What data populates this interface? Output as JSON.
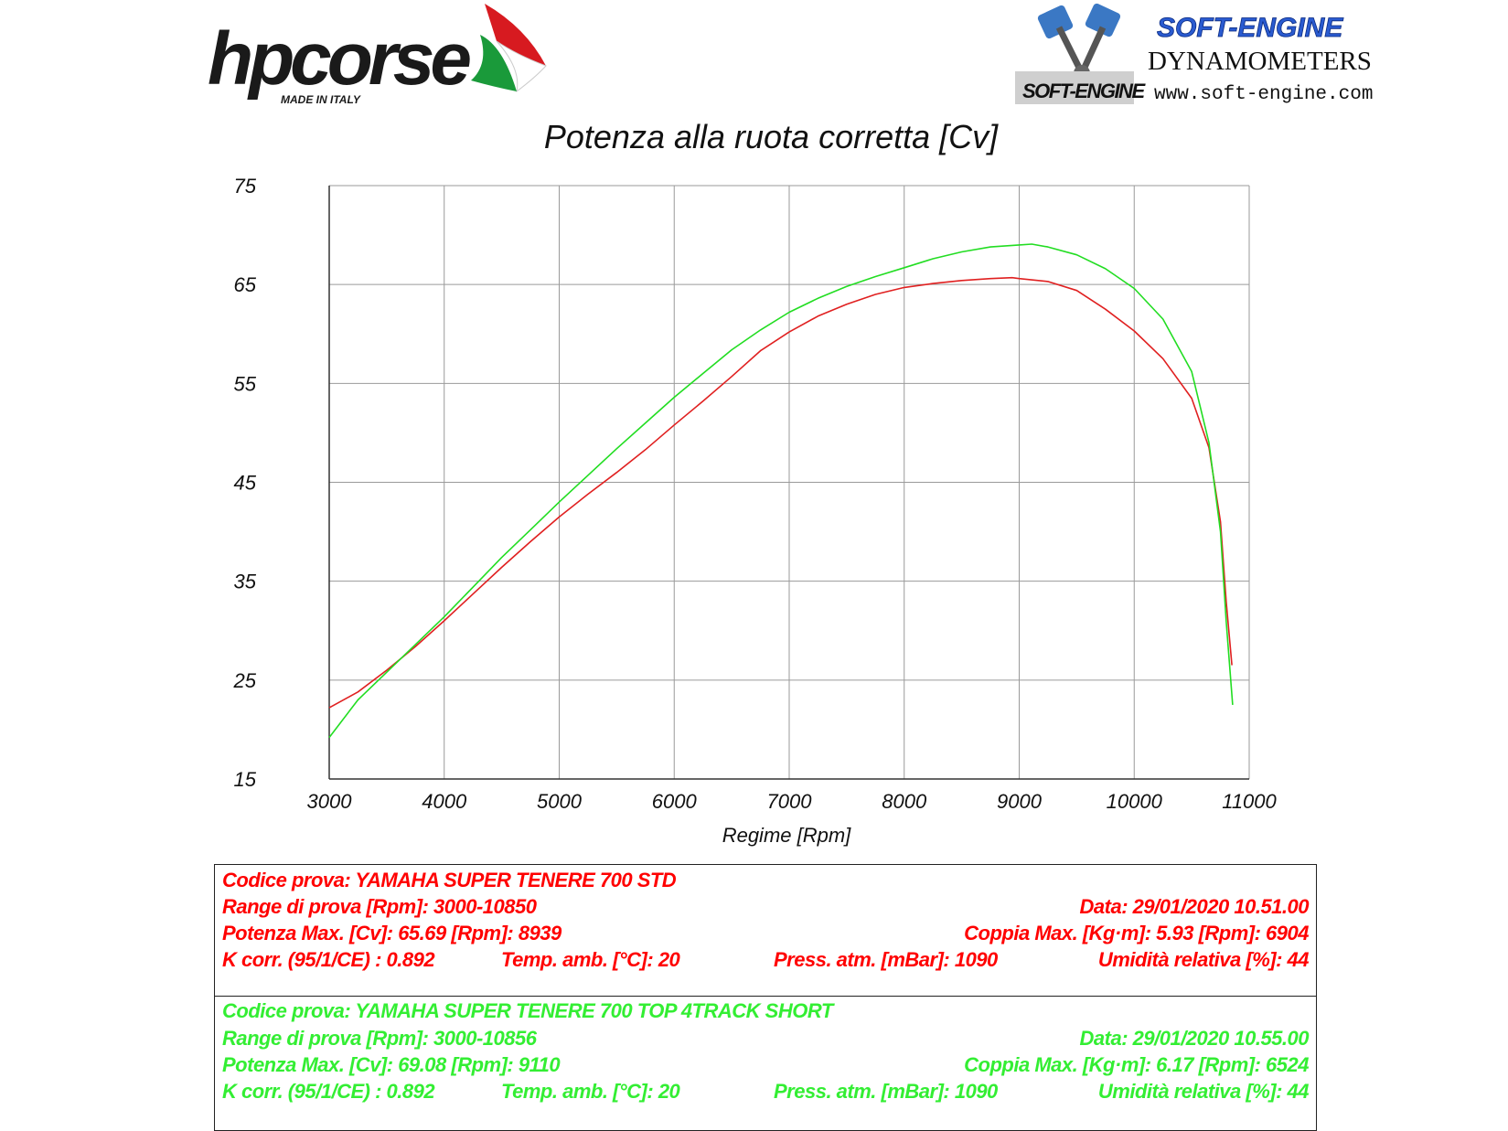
{
  "logos": {
    "hpcorse_text": "hpcorse",
    "hpcorse_tagline": "MADE IN ITALY",
    "softengine_title": "SOFT-ENGINE",
    "softengine_subtitle": "DYNAMOMETERS",
    "softengine_url": "www.soft-engine.com",
    "softengine_badge": "SOFT-ENGINE"
  },
  "colors": {
    "run1": "#e02020",
    "run2": "#22dd22",
    "grid": "#9a9a9a",
    "axis": "#333333"
  },
  "chart_data": {
    "type": "line",
    "title": "Potenza alla ruota corretta [Cv]",
    "xlabel": "Regime [Rpm]",
    "ylabel": "",
    "xlim": [
      3000,
      11000
    ],
    "ylim": [
      15,
      75
    ],
    "xticks": [
      "3000",
      "4000",
      "5000",
      "6000",
      "7000",
      "8000",
      "9000",
      "10000",
      "11000"
    ],
    "yticks": [
      "15",
      "25",
      "35",
      "45",
      "55",
      "65",
      "75"
    ],
    "grid": true,
    "series": [
      {
        "color": "#e02020",
        "x": [
          3000,
          3250,
          3500,
          3750,
          4000,
          4250,
          4500,
          4750,
          5000,
          5250,
          5500,
          5750,
          6000,
          6250,
          6500,
          6750,
          7000,
          7250,
          7500,
          7750,
          8000,
          8250,
          8500,
          8750,
          8939,
          9000,
          9250,
          9500,
          9750,
          10000,
          10250,
          10500,
          10650,
          10750,
          10800,
          10850
        ],
        "y": [
          22.2,
          23.8,
          26.0,
          28.4,
          31.0,
          33.7,
          36.4,
          39.0,
          41.5,
          43.8,
          46.0,
          48.3,
          50.8,
          53.2,
          55.7,
          58.3,
          60.2,
          61.8,
          63.0,
          64.0,
          64.7,
          65.1,
          65.4,
          65.6,
          65.69,
          65.6,
          65.3,
          64.4,
          62.5,
          60.3,
          57.5,
          53.5,
          48.5,
          41.0,
          33.0,
          26.5
        ]
      },
      {
        "color": "#22dd22",
        "x": [
          3000,
          3250,
          3500,
          3750,
          4000,
          4250,
          4500,
          4750,
          5000,
          5250,
          5500,
          5750,
          6000,
          6250,
          6500,
          6750,
          7000,
          7250,
          7500,
          7750,
          8000,
          8250,
          8500,
          8750,
          9000,
          9110,
          9250,
          9500,
          9750,
          10000,
          10250,
          10500,
          10650,
          10750,
          10800,
          10856
        ],
        "y": [
          19.2,
          23.0,
          25.8,
          28.6,
          31.4,
          34.4,
          37.4,
          40.2,
          43.0,
          45.7,
          48.4,
          51.0,
          53.6,
          56.0,
          58.4,
          60.4,
          62.2,
          63.6,
          64.8,
          65.8,
          66.7,
          67.6,
          68.3,
          68.8,
          69.0,
          69.08,
          68.8,
          68.0,
          66.6,
          64.6,
          61.5,
          56.2,
          49.0,
          40.0,
          31.0,
          22.5
        ]
      }
    ]
  },
  "run1": {
    "codice": "Codice prova: YAMAHA SUPER TENERE 700 STD",
    "range": "Range di prova [Rpm]: 3000-10850",
    "data": "Data: 29/01/2020   10.51.00",
    "potenza": "Potenza Max. [Cv]: 65.69   [Rpm]: 8939",
    "coppia": "Coppia Max. [Kg·m]: 5.93   [Rpm]: 6904",
    "kcorr": "K corr. (95/1/CE) : 0.892",
    "temp": "Temp. amb. [°C]: 20",
    "press": "Press. atm. [mBar]: 1090",
    "umid": "Umidità relativa [%]: 44"
  },
  "run2": {
    "codice": "Codice prova: YAMAHA SUPER TENERE 700 TOP 4TRACK SHORT",
    "range": "Range di prova [Rpm]: 3000-10856",
    "data": "Data: 29/01/2020   10.55.00",
    "potenza": "Potenza Max. [Cv]: 69.08   [Rpm]: 9110",
    "coppia": "Coppia Max. [Kg·m]: 6.17   [Rpm]: 6524",
    "kcorr": "K corr. (95/1/CE) : 0.892",
    "temp": "Temp. amb. [°C]: 20",
    "press": "Press. atm. [mBar]: 1090",
    "umid": "Umidità relativa [%]: 44"
  }
}
